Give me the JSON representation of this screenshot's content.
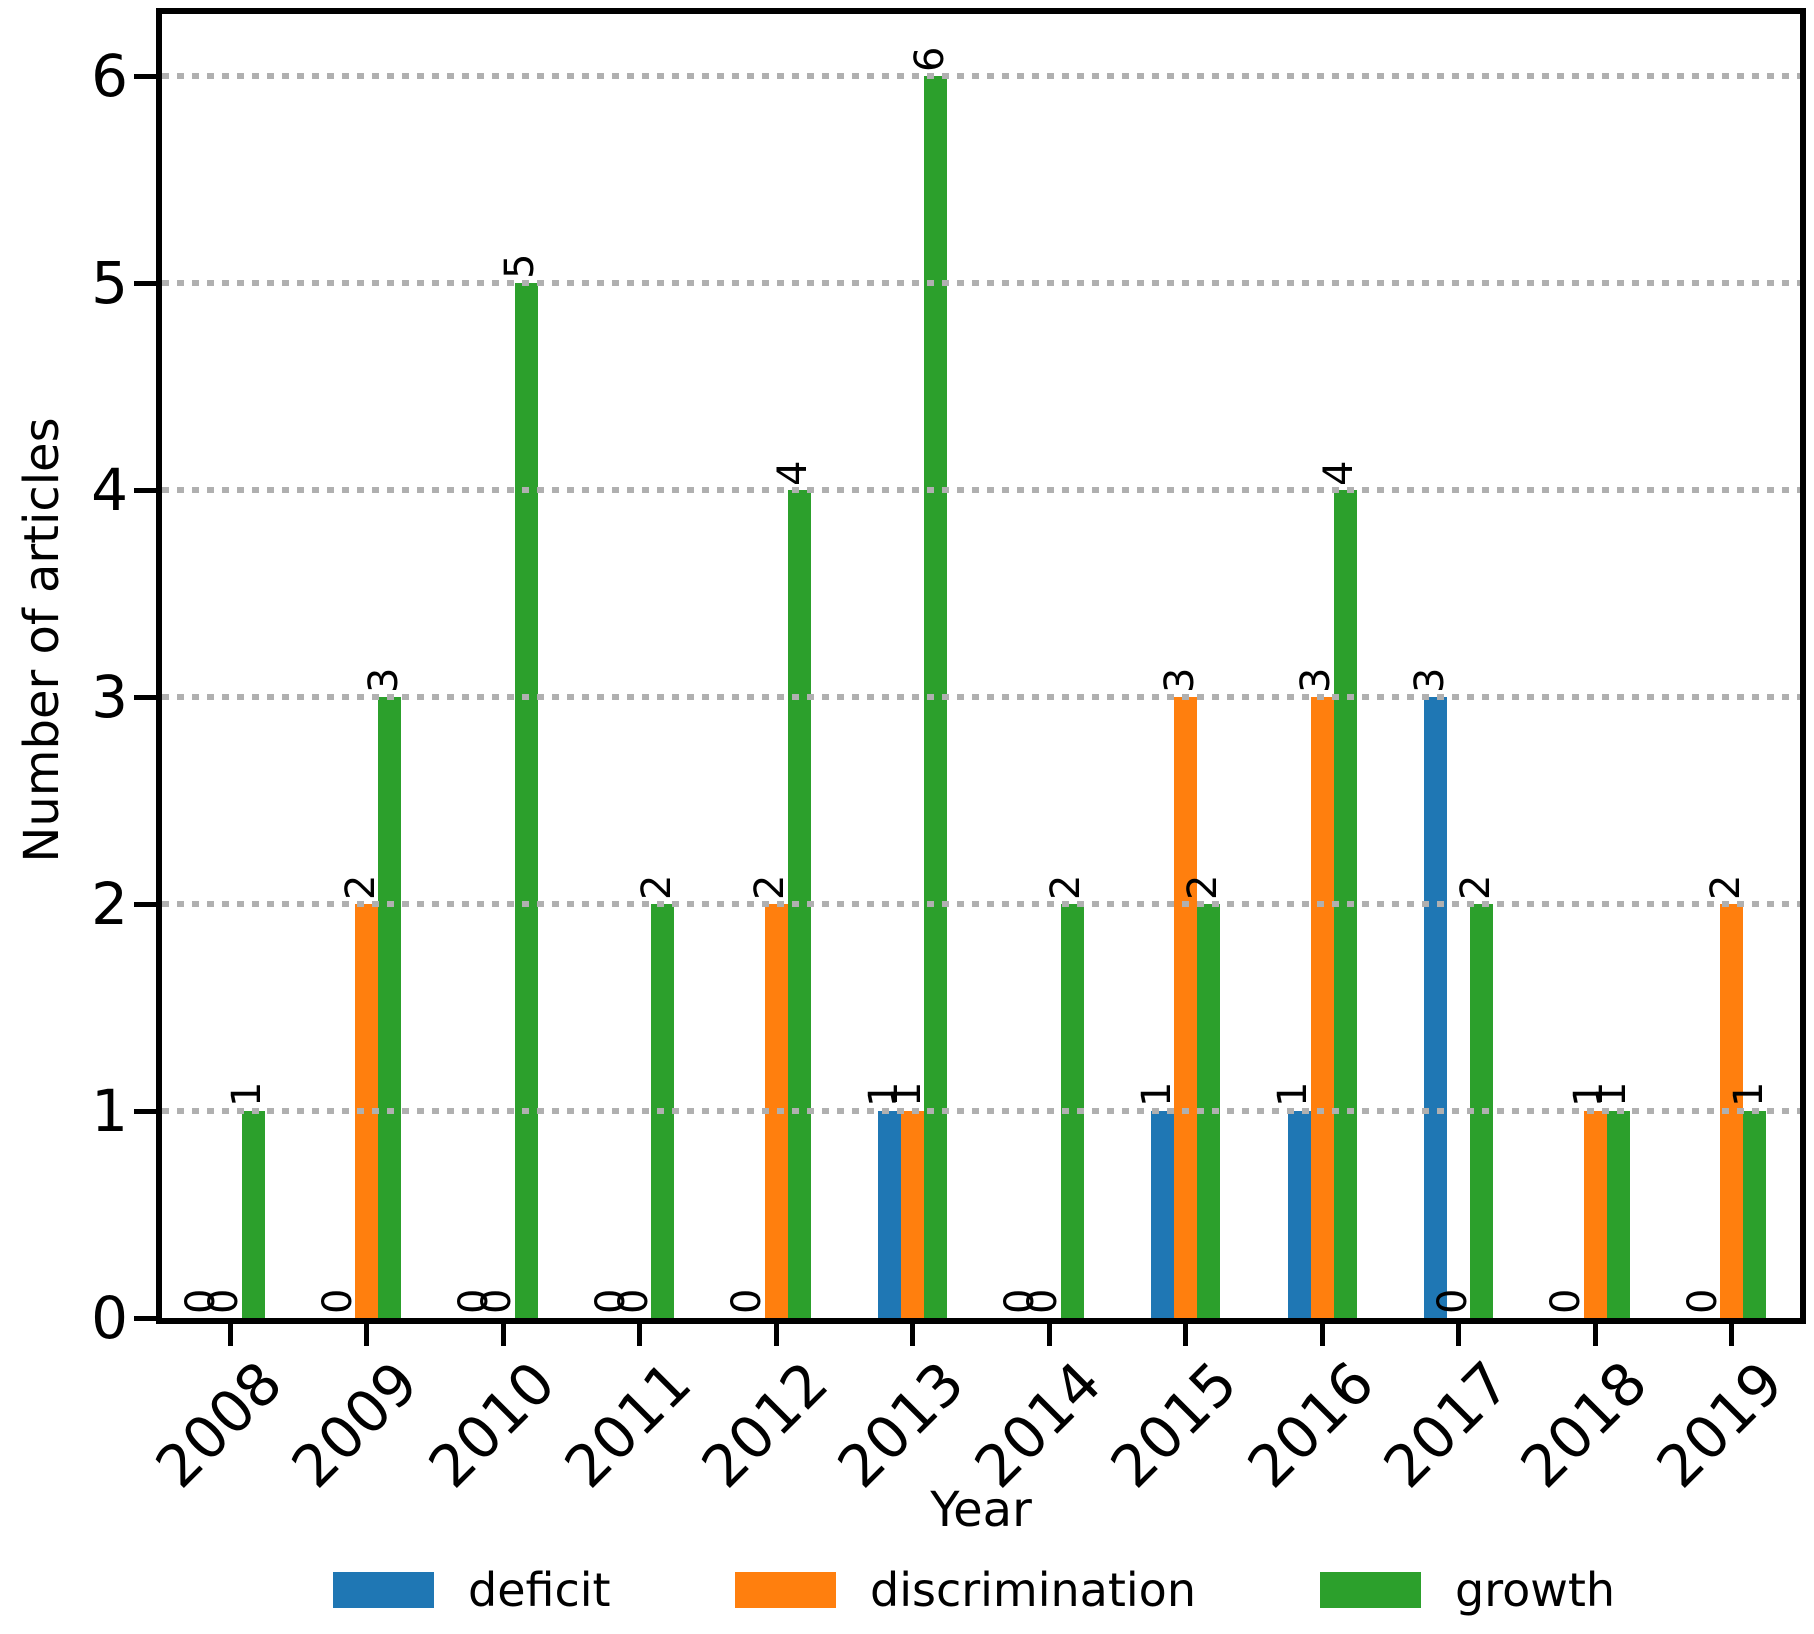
{
  "chart_data": {
    "type": "bar",
    "title": "",
    "xlabel": "Year",
    "ylabel": "Number of articles",
    "categories": [
      "2008",
      "2009",
      "2010",
      "2011",
      "2012",
      "2013",
      "2014",
      "2015",
      "2016",
      "2017",
      "2018",
      "2019"
    ],
    "series": [
      {
        "name": "deficit",
        "color": "#1f77b4",
        "values": [
          0,
          0,
          0,
          0,
          0,
          1,
          0,
          1,
          1,
          3,
          0,
          0
        ]
      },
      {
        "name": "discrimination",
        "color": "#ff7f0e",
        "values": [
          0,
          2,
          0,
          0,
          2,
          1,
          0,
          3,
          3,
          0,
          1,
          2
        ]
      },
      {
        "name": "growth",
        "color": "#2ca02c",
        "values": [
          1,
          3,
          5,
          2,
          4,
          6,
          2,
          2,
          4,
          2,
          1,
          1
        ]
      }
    ],
    "bar_value_labels": true,
    "bar_value_label_rotation_deg": 90,
    "yticks": [
      "0",
      "1",
      "2",
      "3",
      "4",
      "5",
      "6"
    ],
    "ylim": [
      0,
      6.3
    ],
    "xtick_rotation_deg": 45,
    "grid": "horizontal dotted",
    "grid_color": "#b0b0b0",
    "axis_color": "#000000",
    "legend_position": "bottom"
  }
}
